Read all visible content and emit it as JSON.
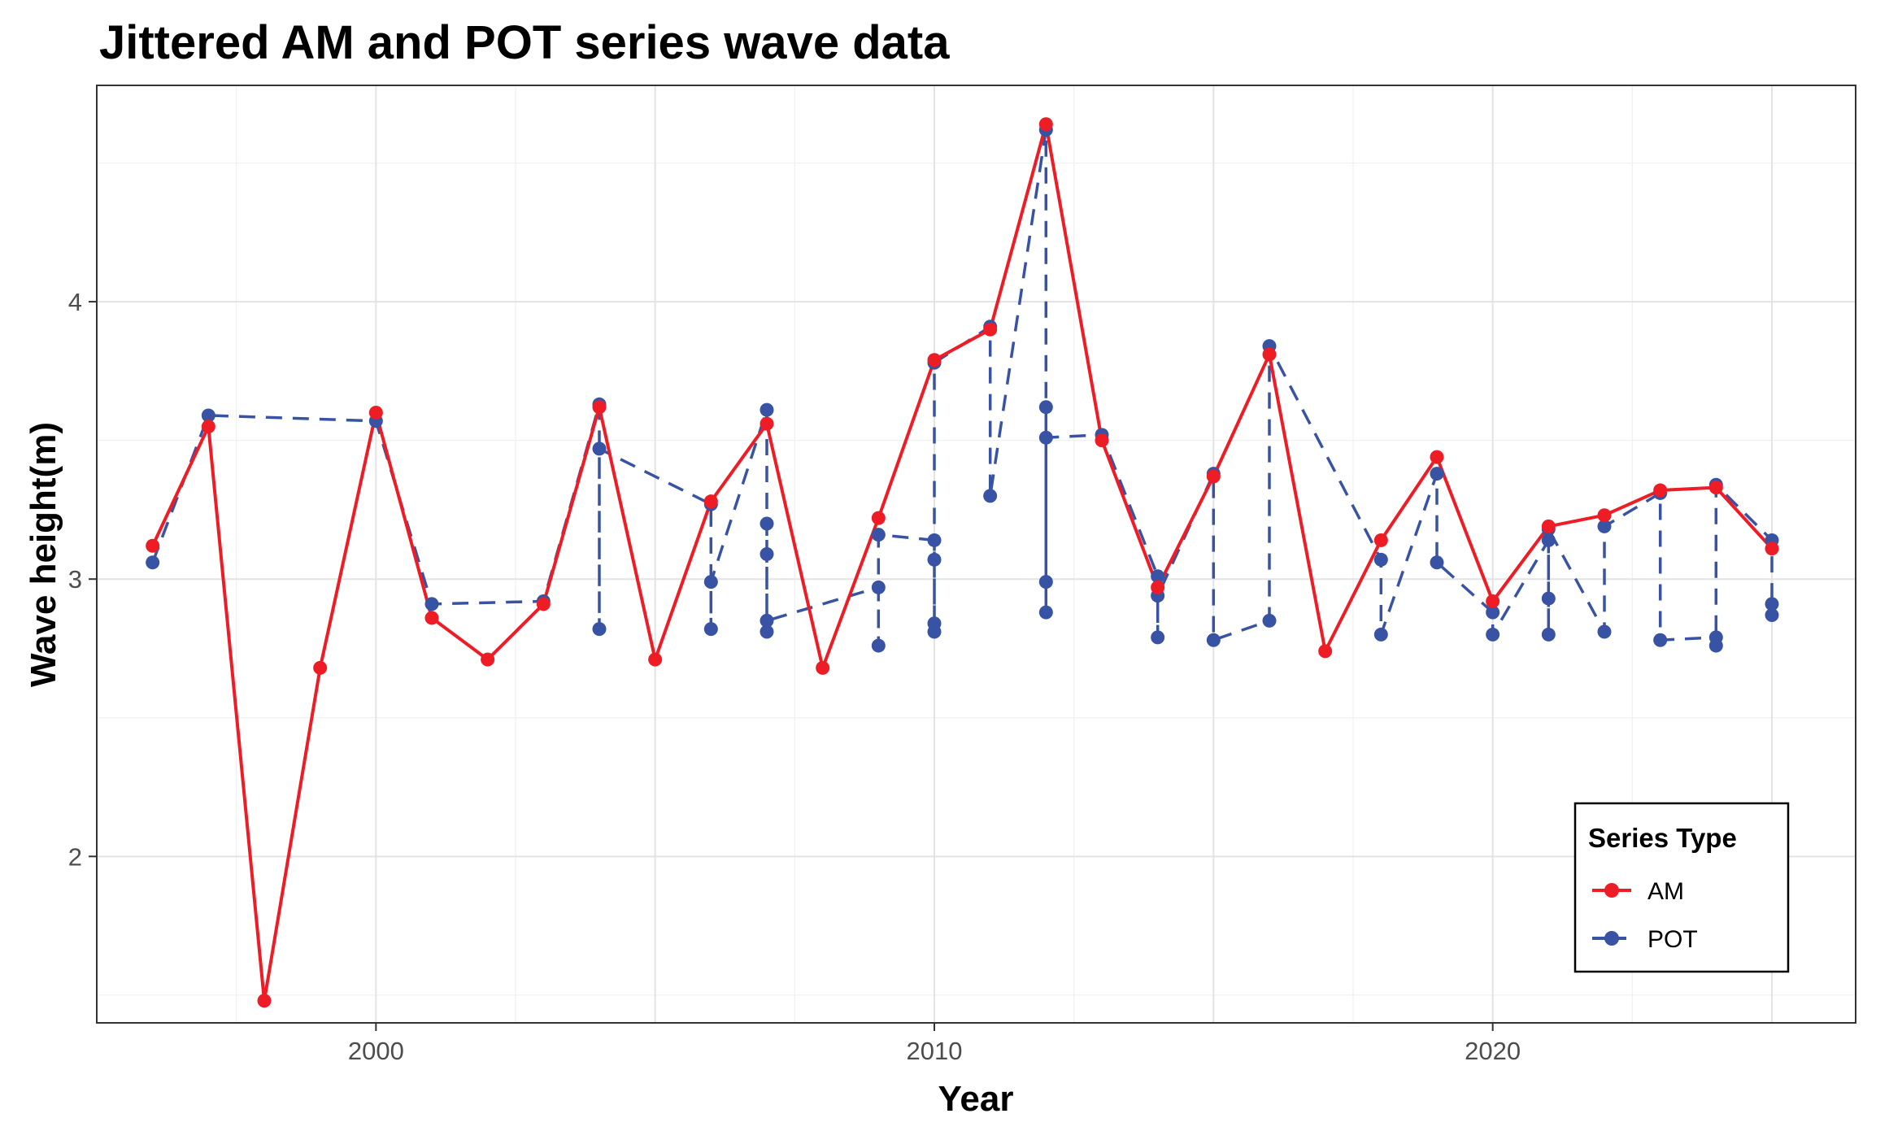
{
  "chart_data": {
    "type": "line",
    "title": "Jittered AM and POT series wave data",
    "xlabel": "Year",
    "ylabel": "Wave height(m)",
    "xlim": [
      1995,
      2026.5
    ],
    "ylim": [
      1.4,
      4.78
    ],
    "x_ticks": [
      2000,
      2010,
      2020
    ],
    "x_tick_labels": [
      "2000",
      "2010",
      "2020"
    ],
    "y_ticks": [
      2,
      3,
      4
    ],
    "y_tick_labels": [
      "2",
      "3",
      "4"
    ],
    "grid": true,
    "legend": {
      "title": "Series Type",
      "position": "bottom-right"
    },
    "series": [
      {
        "name": "AM",
        "color": "#ee1c25",
        "line_style": "solid",
        "points": [
          [
            1996,
            3.12
          ],
          [
            1997,
            3.55
          ],
          [
            1998,
            1.48
          ],
          [
            1999,
            2.68
          ],
          [
            2000,
            3.6
          ],
          [
            2001,
            2.86
          ],
          [
            2002,
            2.71
          ],
          [
            2003,
            2.91
          ],
          [
            2004,
            3.62
          ],
          [
            2005,
            2.71
          ],
          [
            2006,
            3.28
          ],
          [
            2007,
            3.56
          ],
          [
            2008,
            2.68
          ],
          [
            2009,
            3.22
          ],
          [
            2010,
            3.79
          ],
          [
            2011,
            3.9
          ],
          [
            2012,
            4.64
          ],
          [
            2013,
            3.5
          ],
          [
            2014,
            2.97
          ],
          [
            2015,
            3.37
          ],
          [
            2016,
            3.81
          ],
          [
            2017,
            2.74
          ],
          [
            2018,
            3.14
          ],
          [
            2019,
            3.44
          ],
          [
            2020,
            2.92
          ],
          [
            2021,
            3.19
          ],
          [
            2022,
            3.23
          ],
          [
            2023,
            3.32
          ],
          [
            2024,
            3.33
          ],
          [
            2025,
            3.11
          ]
        ]
      },
      {
        "name": "POT",
        "color": "#3953a4",
        "line_style": "dashed",
        "points": [
          [
            1996,
            3.06
          ],
          [
            1997,
            3.59
          ],
          [
            2000,
            3.57
          ],
          [
            2001,
            2.91
          ],
          [
            2003,
            2.92
          ],
          [
            2004,
            3.63
          ],
          [
            2004,
            2.82
          ],
          [
            2004,
            3.47
          ],
          [
            2006,
            3.27
          ],
          [
            2006,
            2.82
          ],
          [
            2006,
            2.99
          ],
          [
            2007,
            3.61
          ],
          [
            2007,
            3.09
          ],
          [
            2007,
            2.81
          ],
          [
            2007,
            3.2
          ],
          [
            2007,
            2.85
          ],
          [
            2009,
            2.97
          ],
          [
            2009,
            2.76
          ],
          [
            2009,
            3.16
          ],
          [
            2010,
            3.14
          ],
          [
            2010,
            2.81
          ],
          [
            2010,
            2.84
          ],
          [
            2010,
            3.07
          ],
          [
            2010,
            3.78
          ],
          [
            2011,
            3.91
          ],
          [
            2011,
            3.3
          ],
          [
            2012,
            4.62
          ],
          [
            2012,
            2.88
          ],
          [
            2012,
            3.62
          ],
          [
            2012,
            2.99
          ],
          [
            2012,
            3.51
          ],
          [
            2013,
            3.52
          ],
          [
            2014,
            3.01
          ],
          [
            2014,
            2.79
          ],
          [
            2014,
            2.94
          ],
          [
            2015,
            3.38
          ],
          [
            2015,
            2.78
          ],
          [
            2016,
            2.85
          ],
          [
            2016,
            3.84
          ],
          [
            2018,
            3.07
          ],
          [
            2018,
            2.8
          ],
          [
            2019,
            3.38
          ],
          [
            2019,
            3.06
          ],
          [
            2020,
            2.88
          ],
          [
            2020,
            2.8
          ],
          [
            2021,
            3.14
          ],
          [
            2021,
            2.8
          ],
          [
            2021,
            2.93
          ],
          [
            2021,
            3.18
          ],
          [
            2022,
            2.81
          ],
          [
            2022,
            3.19
          ],
          [
            2023,
            3.31
          ],
          [
            2023,
            2.78
          ],
          [
            2024,
            2.79
          ],
          [
            2024,
            2.76
          ],
          [
            2024,
            3.34
          ],
          [
            2025,
            3.14
          ],
          [
            2025,
            2.91
          ],
          [
            2025,
            2.87
          ]
        ]
      }
    ]
  }
}
